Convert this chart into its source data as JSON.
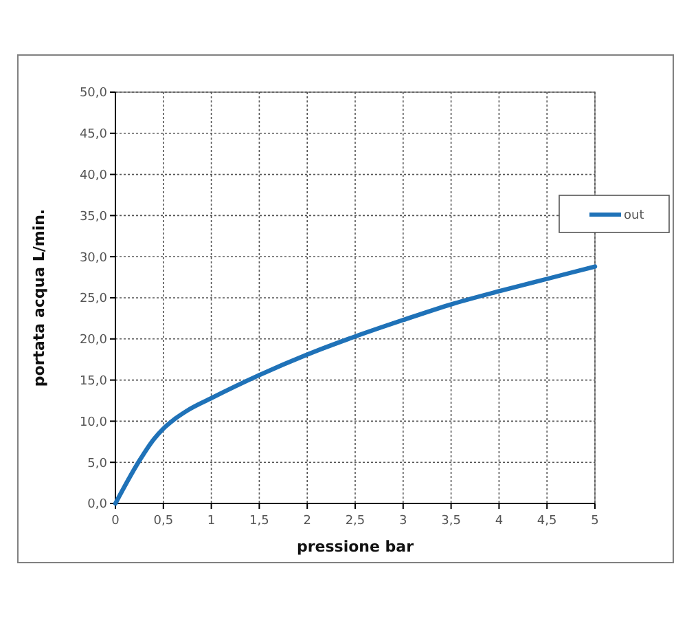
{
  "chart_data": {
    "type": "line",
    "xlabel": "pressione bar",
    "ylabel": "portata acqua L/min.",
    "x": [
      0,
      0.25,
      0.4,
      0.5,
      0.6,
      0.75,
      1,
      1.5,
      2,
      2.5,
      3,
      3.5,
      4,
      4.5,
      5
    ],
    "series": [
      {
        "name": "out",
        "color": "#1f72b8",
        "values": [
          0,
          5.2,
          7.8,
          9.1,
          10.1,
          11.3,
          12.8,
          15.6,
          18.1,
          20.3,
          22.3,
          24.2,
          25.8,
          27.3,
          28.8
        ]
      }
    ],
    "xlim": [
      0,
      5
    ],
    "ylim": [
      0,
      50
    ],
    "xticks": [
      0,
      {
        "value": 0.5,
        "label": "0,5"
      },
      1,
      {
        "value": 1.5,
        "label": "1,5"
      },
      2,
      {
        "value": 2.5,
        "label": "2,5"
      },
      3,
      {
        "value": 3.5,
        "label": "3,5"
      },
      4,
      {
        "value": 4.5,
        "label": "4,5"
      },
      5
    ],
    "yticks": [
      {
        "value": 0,
        "label": "0,0"
      },
      {
        "value": 5,
        "label": "5,0"
      },
      {
        "value": 10,
        "label": "10,0"
      },
      {
        "value": 15,
        "label": "15,0"
      },
      {
        "value": 20,
        "label": "20,0"
      },
      {
        "value": 25,
        "label": "25,0"
      },
      {
        "value": 30,
        "label": "30,0"
      },
      {
        "value": 35,
        "label": "35,0"
      },
      {
        "value": 40,
        "label": "40,0"
      },
      {
        "value": 45,
        "label": "45,0"
      },
      {
        "value": 50,
        "label": "50,0"
      }
    ],
    "grid": true,
    "legend": "right",
    "marker": "none",
    "line_style": "solid"
  }
}
